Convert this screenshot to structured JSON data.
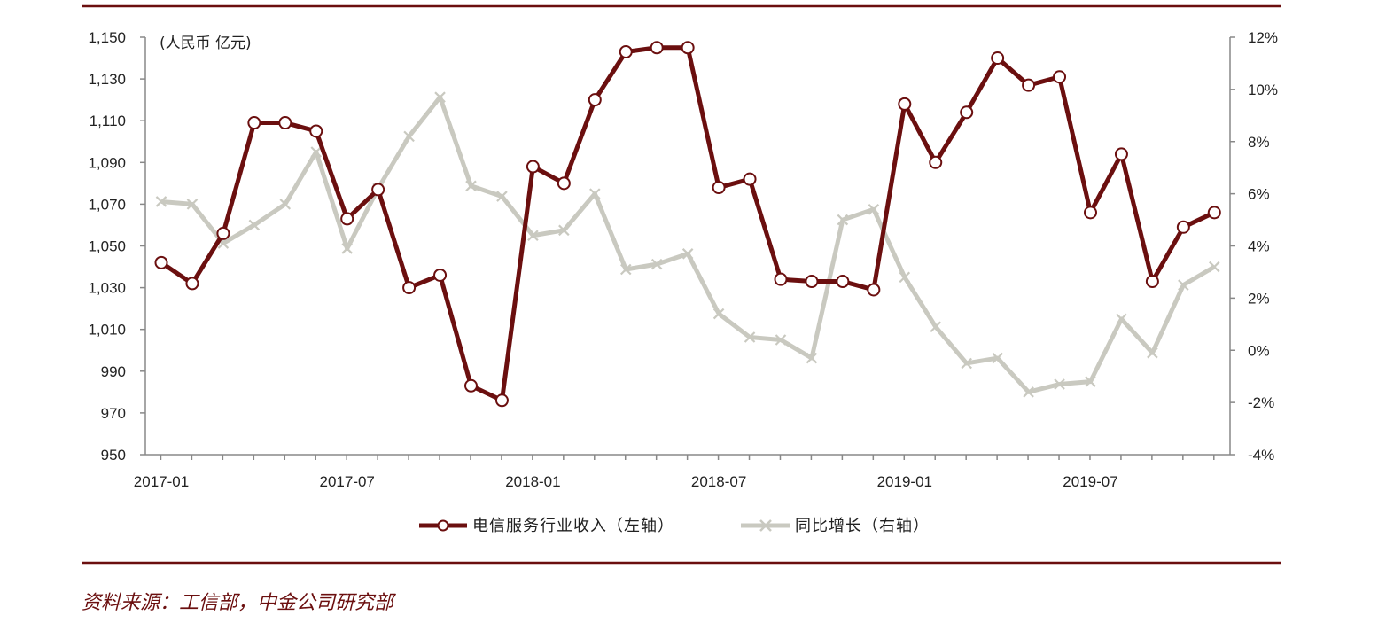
{
  "chart_data": {
    "type": "line",
    "unit_label": "(人民币 亿元)",
    "x": [
      "2017-01",
      "2017-02",
      "2017-03",
      "2017-04",
      "2017-05",
      "2017-06",
      "2017-07",
      "2017-08",
      "2017-09",
      "2017-10",
      "2017-11",
      "2017-12",
      "2018-01",
      "2018-02",
      "2018-03",
      "2018-04",
      "2018-05",
      "2018-06",
      "2018-07",
      "2018-08",
      "2018-09",
      "2018-10",
      "2018-11",
      "2018-12",
      "2019-01",
      "2019-02",
      "2019-03",
      "2019-04",
      "2019-05",
      "2019-06",
      "2019-07",
      "2019-08",
      "2019-09",
      "2019-10",
      "2019-11"
    ],
    "x_tick_labels": [
      "2017-01",
      "2017-07",
      "2018-01",
      "2018-07",
      "2019-01",
      "2019-07"
    ],
    "y_left": {
      "range": [
        950,
        1150
      ],
      "ticks": [
        "1,150",
        "1,130",
        "1,110",
        "1,090",
        "1,070",
        "1,050",
        "1,030",
        "1,010",
        "990",
        "970",
        "950"
      ]
    },
    "y_right": {
      "range": [
        -4,
        12
      ],
      "ticks": [
        "12%",
        "10%",
        "8%",
        "6%",
        "4%",
        "2%",
        "0%",
        "-2%",
        "-4%"
      ]
    },
    "grid": false,
    "legend_position": "bottom",
    "series": [
      {
        "name": "电信服务行业收入（左轴）",
        "axis": "left",
        "color": "#6b0f0f",
        "marker": "circle",
        "values": [
          1042,
          1032,
          1056,
          1109,
          1109,
          1105,
          1063,
          1077,
          1030,
          1036,
          983,
          976,
          1088,
          1080,
          1120,
          1143,
          1145,
          1145,
          1078,
          1082,
          1034,
          1033,
          1033,
          1029,
          1118,
          1090,
          1114,
          1140,
          1127,
          1131,
          1066,
          1094,
          1033,
          1059,
          1066
        ]
      },
      {
        "name": "同比增长（右轴）",
        "axis": "right",
        "color": "#c9c9c0",
        "marker": "x",
        "values": [
          5.7,
          5.6,
          4.1,
          4.8,
          5.6,
          7.6,
          3.9,
          6.2,
          8.2,
          9.7,
          6.3,
          5.9,
          4.4,
          4.6,
          6.0,
          3.1,
          3.3,
          3.7,
          1.4,
          0.5,
          0.4,
          -0.3,
          5.0,
          5.4,
          2.8,
          0.9,
          -0.5,
          -0.3,
          -1.6,
          -1.3,
          -1.2,
          1.2,
          -0.1,
          2.5,
          3.2
        ]
      }
    ]
  },
  "source_text": "资料来源：工信部，中金公司研究部"
}
